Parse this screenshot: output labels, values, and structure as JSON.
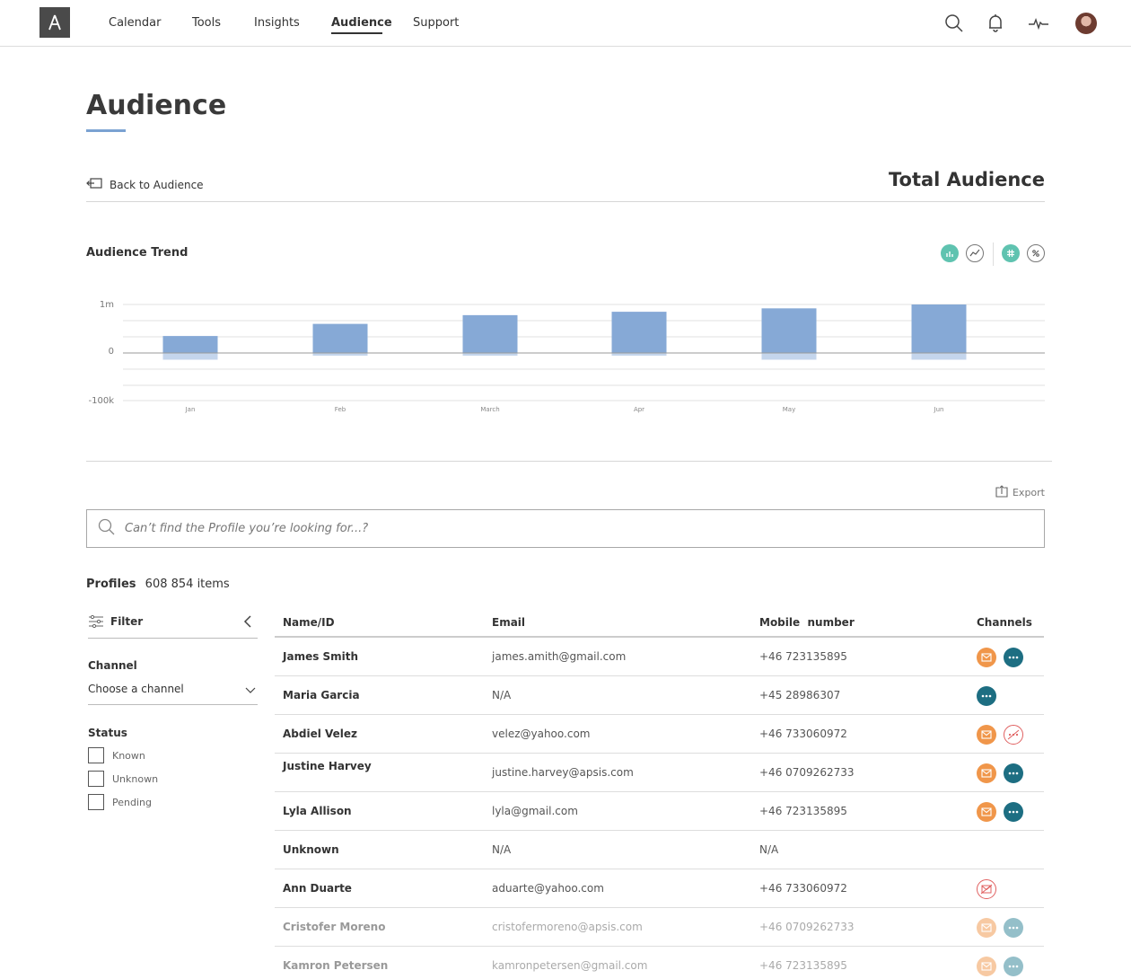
{
  "nav": {
    "items": [
      "Calendar",
      "Tools",
      "Insights",
      "Audience",
      "Support"
    ],
    "active": "Audience",
    "icons": [
      "search-icon",
      "bell-icon",
      "activity-icon",
      "avatar"
    ]
  },
  "page": {
    "title": "Audience",
    "back_label": "Back to Audience",
    "section_title": "Total Audience"
  },
  "trend": {
    "title": "Audience Trend",
    "toggles": [
      "bar-chart-icon",
      "line-chart-icon",
      "hash-icon",
      "percent-icon"
    ]
  },
  "chart_data": {
    "type": "bar",
    "title": "Audience Trend",
    "categories": [
      "Jan",
      "Feb",
      "March",
      "Apr",
      "May",
      "Jun"
    ],
    "series": [
      {
        "values": [
          35,
          60,
          78,
          85,
          92,
          100
        ],
        "color": "#86a9d6"
      },
      {
        "values": [
          -15,
          -6,
          -6,
          -6,
          -15,
          -15
        ],
        "color": "#c4d5ec"
      }
    ],
    "y_tick_labels": [
      "1m",
      "0",
      "-100k"
    ],
    "ylim": [
      -100,
      100
    ],
    "grid": true
  },
  "export_label": "Export",
  "search": {
    "placeholder": "Can’t find the Profile you’re looking for...?"
  },
  "profiles": {
    "label": "Profiles",
    "count": "608 854 items"
  },
  "filter": {
    "label": "Filter",
    "channel_label": "Channel",
    "channel_value": "Choose a channel",
    "status_label": "Status",
    "statuses": [
      "Known",
      "Unknown",
      "Pending"
    ]
  },
  "table": {
    "headers": [
      "Name/ID",
      "Email",
      "Mobile  number",
      "Channels"
    ],
    "rows": [
      {
        "name": "James Smith",
        "email": "james.amith@gmail.com",
        "mobile": "+46 723135895",
        "channels": [
          "mail",
          "chat"
        ]
      },
      {
        "name": "Maria Garcia",
        "email": "N/A",
        "mobile": "+45 28986307",
        "channels": [
          "chat"
        ]
      },
      {
        "name": "Abdiel Velez",
        "email": "velez@yahoo.com",
        "mobile": "+46 733060972",
        "channels": [
          "mail",
          "chat-off"
        ]
      },
      {
        "name": "Justine Harvey",
        "email": "justine.harvey@apsis.com",
        "mobile": "+46 0709262733",
        "channels": [
          "mail",
          "chat"
        ]
      },
      {
        "name": "Lyla Allison",
        "email": "lyla@gmail.com",
        "mobile": "+46 723135895",
        "channels": [
          "mail",
          "chat"
        ]
      },
      {
        "name": "Unknown",
        "email": "N/A",
        "mobile": "N/A",
        "channels": []
      },
      {
        "name": "Ann Duarte",
        "email": "aduarte@yahoo.com",
        "mobile": "+46 733060972",
        "channels": [
          "mail-off"
        ]
      },
      {
        "name": "Cristofer Moreno",
        "email": "cristofermoreno@apsis.com",
        "mobile": "+46 0709262733",
        "channels": [
          "mail",
          "chat"
        ]
      },
      {
        "name": "Kamron Petersen",
        "email": "kamronpetersen@gmail.com",
        "mobile": "+46 723135895",
        "channels": [
          "mail",
          "chat"
        ]
      }
    ]
  }
}
